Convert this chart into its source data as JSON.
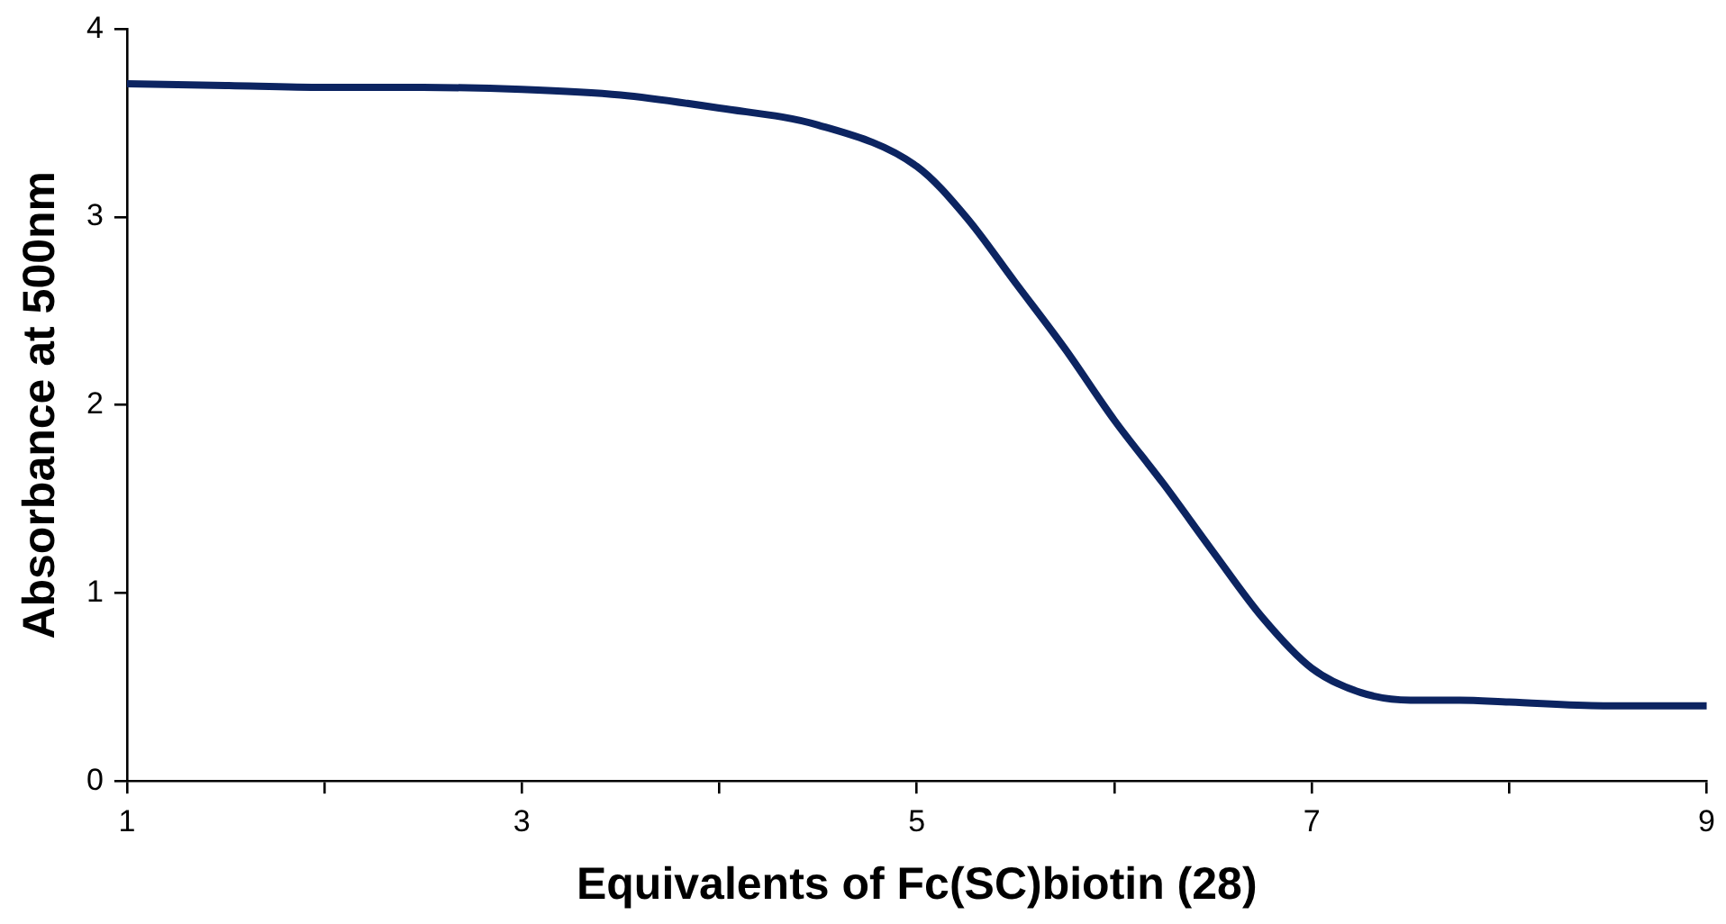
{
  "chart_data": {
    "type": "line",
    "xlabel": "Equivalents of Fc(SC)biotin (28)",
    "ylabel": "Absorbance at 500nm",
    "x": [
      1,
      1.5,
      2,
      2.5,
      3,
      3.5,
      4,
      4.5,
      5,
      5.25,
      5.5,
      5.75,
      6,
      6.25,
      6.5,
      6.75,
      7,
      7.25,
      7.5,
      7.75,
      8,
      8.5,
      9
    ],
    "series": [
      {
        "color": "#0c2461",
        "values": [
          3.71,
          3.7,
          3.69,
          3.69,
          3.68,
          3.65,
          3.58,
          3.49,
          3.27,
          3.0,
          2.65,
          2.3,
          1.92,
          1.58,
          1.22,
          0.87,
          0.6,
          0.47,
          0.43,
          0.43,
          0.42,
          0.4,
          0.4
        ]
      }
    ],
    "xlim": [
      1,
      9
    ],
    "xticks": [
      1,
      {
        "value": 2,
        "label": null
      },
      3,
      {
        "value": 4,
        "label": null
      },
      5,
      {
        "value": 6,
        "label": null
      },
      7,
      {
        "value": 8,
        "label": null
      },
      9
    ],
    "ylim": [
      0,
      4
    ],
    "yticks": [
      0,
      1,
      2,
      3,
      4
    ],
    "marker": "none",
    "line_style": "solid"
  }
}
